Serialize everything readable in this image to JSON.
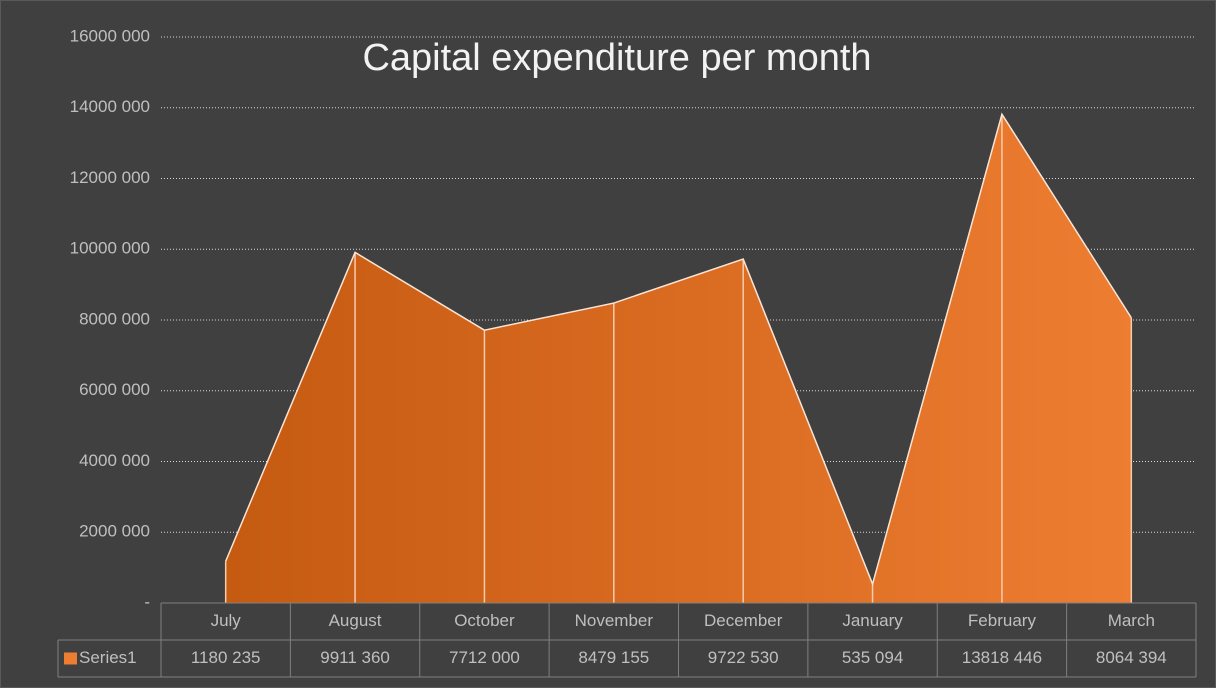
{
  "chart_data": {
    "type": "area",
    "title": "Capital expenditure per month",
    "categories": [
      "July",
      "August",
      "October",
      "November",
      "December",
      "January",
      "February",
      "March"
    ],
    "series": [
      {
        "name": "Series1",
        "color": "#ed7d31",
        "values": [
          1180235,
          9911360,
          7712000,
          8479155,
          9722530,
          535094,
          13818446,
          8064394
        ],
        "value_labels": [
          "1180 235",
          "9911 360",
          "7712 000",
          "8479 155",
          "9722 530",
          "535 094",
          "13818 446",
          "8064 394"
        ]
      }
    ],
    "ylim": [
      0,
      16000000
    ],
    "yticks": [
      {
        "value": 0,
        "label": "-"
      },
      {
        "value": 2000000,
        "label": "2000 000"
      },
      {
        "value": 4000000,
        "label": "4000 000"
      },
      {
        "value": 6000000,
        "label": "6000 000"
      },
      {
        "value": 8000000,
        "label": "8000 000"
      },
      {
        "value": 10000000,
        "label": "10000 000"
      },
      {
        "value": 12000000,
        "label": "12000 000"
      },
      {
        "value": 14000000,
        "label": "14000 000"
      },
      {
        "value": 16000000,
        "label": "16000 000"
      }
    ],
    "grid": true,
    "data_table": true
  }
}
